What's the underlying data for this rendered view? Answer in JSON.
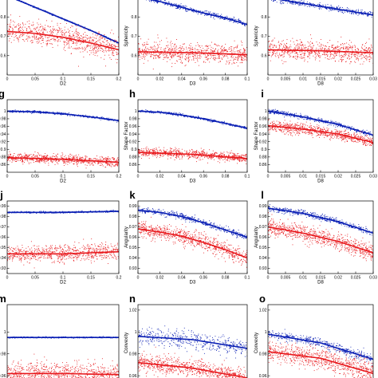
{
  "colors": {
    "blue": "#0a1fb4",
    "red": "#e8181c",
    "axis": "#000000"
  },
  "chart_data": [
    {
      "type": "scatter",
      "panel_label": "",
      "xlabel": "D2",
      "ylabel": "Sphericity",
      "xlim": [
        0,
        0.2
      ],
      "ylim": [
        0.5,
        0.9
      ],
      "xticks": [
        0,
        0.05,
        0.1,
        0.15,
        0.2
      ],
      "xticklabels": [
        "0",
        "0.05",
        "0.1",
        "0.15",
        "0.2"
      ],
      "yticks": [
        0.6,
        0.7,
        0.8
      ],
      "yticklabels": [
        "0.6",
        "0.7",
        "0.8"
      ],
      "series": [
        {
          "color": "blue",
          "x": [
            0,
            0.05,
            0.1,
            0.15,
            0.2
          ],
          "y": [
            0.91,
            0.85,
            0.79,
            0.73,
            0.665
          ],
          "spread": 0.002
        },
        {
          "color": "red",
          "x": [
            0,
            0.05,
            0.1,
            0.15,
            0.2
          ],
          "y": [
            0.725,
            0.715,
            0.695,
            0.665,
            0.63
          ],
          "spread": 0.03
        }
      ]
    },
    {
      "type": "scatter",
      "panel_label": "",
      "xlabel": "D3",
      "ylabel": "Sphericity",
      "xlim": [
        0,
        0.1
      ],
      "ylim": [
        0.5,
        0.9
      ],
      "xticks": [
        0,
        0.02,
        0.04,
        0.06,
        0.08,
        0.1
      ],
      "xticklabels": [
        "0",
        "0.02",
        "0.04",
        "0.06",
        "0.08",
        "0.1"
      ],
      "yticks": [
        0.6,
        0.7,
        0.8
      ],
      "yticklabels": [
        "0.6",
        "0.7",
        "0.8"
      ],
      "series": [
        {
          "color": "blue",
          "x": [
            0,
            0.02,
            0.04,
            0.06,
            0.08,
            0.1
          ],
          "y": [
            0.905,
            0.88,
            0.85,
            0.82,
            0.795,
            0.76
          ],
          "spread": 0.006
        },
        {
          "color": "red",
          "x": [
            0,
            0.05,
            0.1
          ],
          "y": [
            0.62,
            0.615,
            0.605
          ],
          "spread": 0.025
        }
      ]
    },
    {
      "type": "scatter",
      "panel_label": "",
      "xlabel": "D8",
      "ylabel": "Sphericity",
      "xlim": [
        0,
        0.03
      ],
      "ylim": [
        0.5,
        0.9
      ],
      "xticks": [
        0,
        0.005,
        0.01,
        0.015,
        0.02,
        0.025,
        0.03
      ],
      "xticklabels": [
        "0",
        "0.005",
        "0.01",
        "0.015",
        "0.02",
        "0.025",
        "0.03"
      ],
      "yticks": [
        0.6,
        0.7,
        0.8
      ],
      "yticklabels": [
        "0.6",
        "0.7",
        "0.8"
      ],
      "series": [
        {
          "color": "blue",
          "x": [
            0,
            0.01,
            0.02,
            0.03
          ],
          "y": [
            0.9,
            0.87,
            0.84,
            0.81
          ],
          "spread": 0.007
        },
        {
          "color": "red",
          "x": [
            0,
            0.015,
            0.03
          ],
          "y": [
            0.63,
            0.625,
            0.615
          ],
          "spread": 0.025
        }
      ]
    },
    {
      "type": "scatter",
      "panel_label": "g",
      "xlabel": "D2",
      "ylabel": "Shape Factor",
      "xlim": [
        0,
        0.2
      ],
      "ylim": [
        0.84,
        1.03
      ],
      "xticks": [
        0,
        0.05,
        0.1,
        0.15,
        0.2
      ],
      "xticklabels": [
        "0",
        "0.05",
        "0.1",
        "0.15",
        "0.2"
      ],
      "yticks": [
        0.86,
        0.88,
        0.9,
        0.92,
        0.94,
        0.96,
        0.98,
        1
      ],
      "yticklabels": [
        "0.86",
        "0.88",
        "0.9",
        "0.92",
        "0.94",
        "0.96",
        "0.98",
        "1"
      ],
      "series": [
        {
          "color": "blue",
          "x": [
            0,
            0.05,
            0.1,
            0.15,
            0.2
          ],
          "y": [
            1.0,
            0.998,
            0.993,
            0.985,
            0.975
          ],
          "spread": 0.0015
        },
        {
          "color": "red",
          "x": [
            0,
            0.1,
            0.2
          ],
          "y": [
            0.878,
            0.874,
            0.866
          ],
          "spread": 0.006
        }
      ]
    },
    {
      "type": "scatter",
      "panel_label": "h",
      "xlabel": "D3",
      "ylabel": "Shape Factor",
      "xlim": [
        0,
        0.1
      ],
      "ylim": [
        0.84,
        1.03
      ],
      "xticks": [
        0,
        0.02,
        0.04,
        0.06,
        0.08,
        0.1
      ],
      "xticklabels": [
        "0",
        "0.02",
        "0.04",
        "0.06",
        "0.08",
        "0.1"
      ],
      "yticks": [
        0.86,
        0.88,
        0.9,
        0.92,
        0.94,
        0.96,
        0.98,
        1
      ],
      "yticklabels": [
        "0.86",
        "0.88",
        "0.9",
        "0.92",
        "0.94",
        "0.96",
        "0.98",
        "1"
      ],
      "series": [
        {
          "color": "blue",
          "x": [
            0,
            0.02,
            0.04,
            0.06,
            0.08,
            0.1
          ],
          "y": [
            1.0,
            0.997,
            0.99,
            0.98,
            0.968,
            0.955
          ],
          "spread": 0.0015
        },
        {
          "color": "red",
          "x": [
            0,
            0.05,
            0.1
          ],
          "y": [
            0.892,
            0.887,
            0.876
          ],
          "spread": 0.006
        }
      ]
    },
    {
      "type": "scatter",
      "panel_label": "i",
      "xlabel": "D8",
      "ylabel": "Shape Factor",
      "xlim": [
        0,
        0.03
      ],
      "ylim": [
        0.84,
        1.03
      ],
      "xticks": [
        0,
        0.005,
        0.01,
        0.015,
        0.02,
        0.025,
        0.03
      ],
      "xticklabels": [
        "0",
        "0.005",
        "0.01",
        "0.015",
        "0.02",
        "0.025",
        "0.03"
      ],
      "yticks": [
        0.86,
        0.88,
        0.9,
        0.92,
        0.94,
        0.96,
        0.98,
        1
      ],
      "yticklabels": [
        "0.86",
        "0.88",
        "0.9",
        "0.92",
        "0.94",
        "0.96",
        "0.98",
        "1"
      ],
      "series": [
        {
          "color": "blue",
          "x": [
            0,
            0.01,
            0.02,
            0.03
          ],
          "y": [
            1.0,
            0.985,
            0.965,
            0.937
          ],
          "spread": 0.003
        },
        {
          "color": "red",
          "x": [
            0,
            0.01,
            0.02,
            0.03
          ],
          "y": [
            0.962,
            0.953,
            0.94,
            0.918
          ],
          "spread": 0.007
        }
      ]
    },
    {
      "type": "scatter",
      "panel_label": "j",
      "xlabel": "D2",
      "ylabel": "Angularity",
      "xlim": [
        0,
        0.2
      ],
      "ylim": [
        0.925,
        0.995
      ],
      "xticks": [
        0,
        0.05,
        0.1,
        0.15,
        0.2
      ],
      "xticklabels": [
        "0",
        "0.05",
        "0.1",
        "0.15",
        "0.2"
      ],
      "yticks": [
        0.93,
        0.94,
        0.95,
        0.96,
        0.97,
        0.98,
        0.99
      ],
      "yticklabels": [
        "0.93",
        "0.94",
        "0.95",
        "0.96",
        "0.97",
        "0.98",
        "0.99"
      ],
      "series": [
        {
          "color": "blue",
          "x": [
            0,
            0.1,
            0.2
          ],
          "y": [
            0.984,
            0.984,
            0.985
          ],
          "spread": 0.0004
        },
        {
          "color": "red",
          "x": [
            0,
            0.1,
            0.2
          ],
          "y": [
            0.944,
            0.944,
            0.946
          ],
          "spread": 0.004
        }
      ]
    },
    {
      "type": "scatter",
      "panel_label": "k",
      "xlabel": "D3",
      "ylabel": "Angularity",
      "xlim": [
        0,
        0.1
      ],
      "ylim": [
        0.925,
        0.995
      ],
      "xticks": [
        0,
        0.02,
        0.04,
        0.06,
        0.08,
        0.1
      ],
      "xticklabels": [
        "0",
        "0.02",
        "0.04",
        "0.06",
        "0.08",
        "0.1"
      ],
      "yticks": [
        0.93,
        0.94,
        0.95,
        0.96,
        0.97,
        0.98,
        0.99
      ],
      "yticklabels": [
        "0.93",
        "0.94",
        "0.95",
        "0.96",
        "0.97",
        "0.98",
        "0.99"
      ],
      "series": [
        {
          "color": "blue",
          "x": [
            0,
            0.02,
            0.04,
            0.06,
            0.08,
            0.1
          ],
          "y": [
            0.986,
            0.984,
            0.98,
            0.974,
            0.967,
            0.96
          ],
          "spread": 0.0015
        },
        {
          "color": "red",
          "x": [
            0,
            0.02,
            0.04,
            0.06,
            0.08,
            0.1
          ],
          "y": [
            0.968,
            0.965,
            0.961,
            0.955,
            0.948,
            0.94
          ],
          "spread": 0.004
        }
      ]
    },
    {
      "type": "scatter",
      "panel_label": "l",
      "xlabel": "D8",
      "ylabel": "Angularity",
      "xlim": [
        0,
        0.03
      ],
      "ylim": [
        0.925,
        0.995
      ],
      "xticks": [
        0,
        0.005,
        0.01,
        0.015,
        0.02,
        0.025,
        0.03
      ],
      "xticklabels": [
        "0",
        "0.005",
        "0.01",
        "0.015",
        "0.02",
        "0.025",
        "0.03"
      ],
      "yticks": [
        0.93,
        0.94,
        0.95,
        0.96,
        0.97,
        0.98,
        0.99
      ],
      "yticklabels": [
        "0.93",
        "0.94",
        "0.95",
        "0.96",
        "0.97",
        "0.98",
        "0.99"
      ],
      "series": [
        {
          "color": "blue",
          "x": [
            0,
            0.01,
            0.02,
            0.03
          ],
          "y": [
            0.988,
            0.983,
            0.975,
            0.964
          ],
          "spread": 0.0015
        },
        {
          "color": "red",
          "x": [
            0,
            0.01,
            0.02,
            0.03
          ],
          "y": [
            0.97,
            0.964,
            0.956,
            0.945
          ],
          "spread": 0.004
        }
      ]
    },
    {
      "type": "scatter",
      "panel_label": "m",
      "xlabel": "",
      "ylabel": "Convexity",
      "xlim": [
        0,
        0.2
      ],
      "ylim": [
        0.955,
        1.025
      ],
      "xticks": [],
      "xticklabels": [],
      "yticks": [
        0.96,
        0.98,
        1
      ],
      "yticklabels": [
        "0.96",
        "0.98",
        "1"
      ],
      "series": [
        {
          "color": "blue",
          "x": [
            0,
            0.2
          ],
          "y": [
            0.995,
            0.995
          ],
          "spread": 0.0003
        },
        {
          "color": "red",
          "x": [
            0,
            0.1,
            0.2
          ],
          "y": [
            0.962,
            0.962,
            0.961
          ],
          "spread": 0.005
        }
      ]
    },
    {
      "type": "scatter",
      "panel_label": "n",
      "xlabel": "",
      "ylabel": "Convexity",
      "xlim": [
        0,
        0.1
      ],
      "ylim": [
        0.955,
        1.025
      ],
      "xticks": [],
      "xticklabels": [],
      "yticks": [
        0.96,
        0.98,
        1,
        1.02
      ],
      "yticklabels": [
        "0.96",
        "0.98",
        "1",
        "1.02"
      ],
      "series": [
        {
          "color": "blue",
          "x": [
            0,
            0.05,
            0.1
          ],
          "y": [
            0.996,
            0.993,
            0.985
          ],
          "spread": 0.004
        },
        {
          "color": "red",
          "x": [
            0,
            0.05,
            0.1
          ],
          "y": [
            0.972,
            0.967,
            0.958
          ],
          "spread": 0.004
        }
      ]
    },
    {
      "type": "scatter",
      "panel_label": "o",
      "xlabel": "",
      "ylabel": "Convexity",
      "xlim": [
        0,
        0.03
      ],
      "ylim": [
        0.955,
        1.025
      ],
      "xticks": [],
      "xticklabels": [],
      "yticks": [
        0.96,
        0.98,
        1,
        1.02
      ],
      "yticklabels": [
        "0.96",
        "0.98",
        "1",
        "1.02"
      ],
      "series": [
        {
          "color": "blue",
          "x": [
            0,
            0.015,
            0.03
          ],
          "y": [
            0.998,
            0.99,
            0.975
          ],
          "spread": 0.002
        },
        {
          "color": "red",
          "x": [
            0,
            0.015,
            0.03
          ],
          "y": [
            0.982,
            0.976,
            0.962
          ],
          "spread": 0.005
        }
      ]
    }
  ]
}
